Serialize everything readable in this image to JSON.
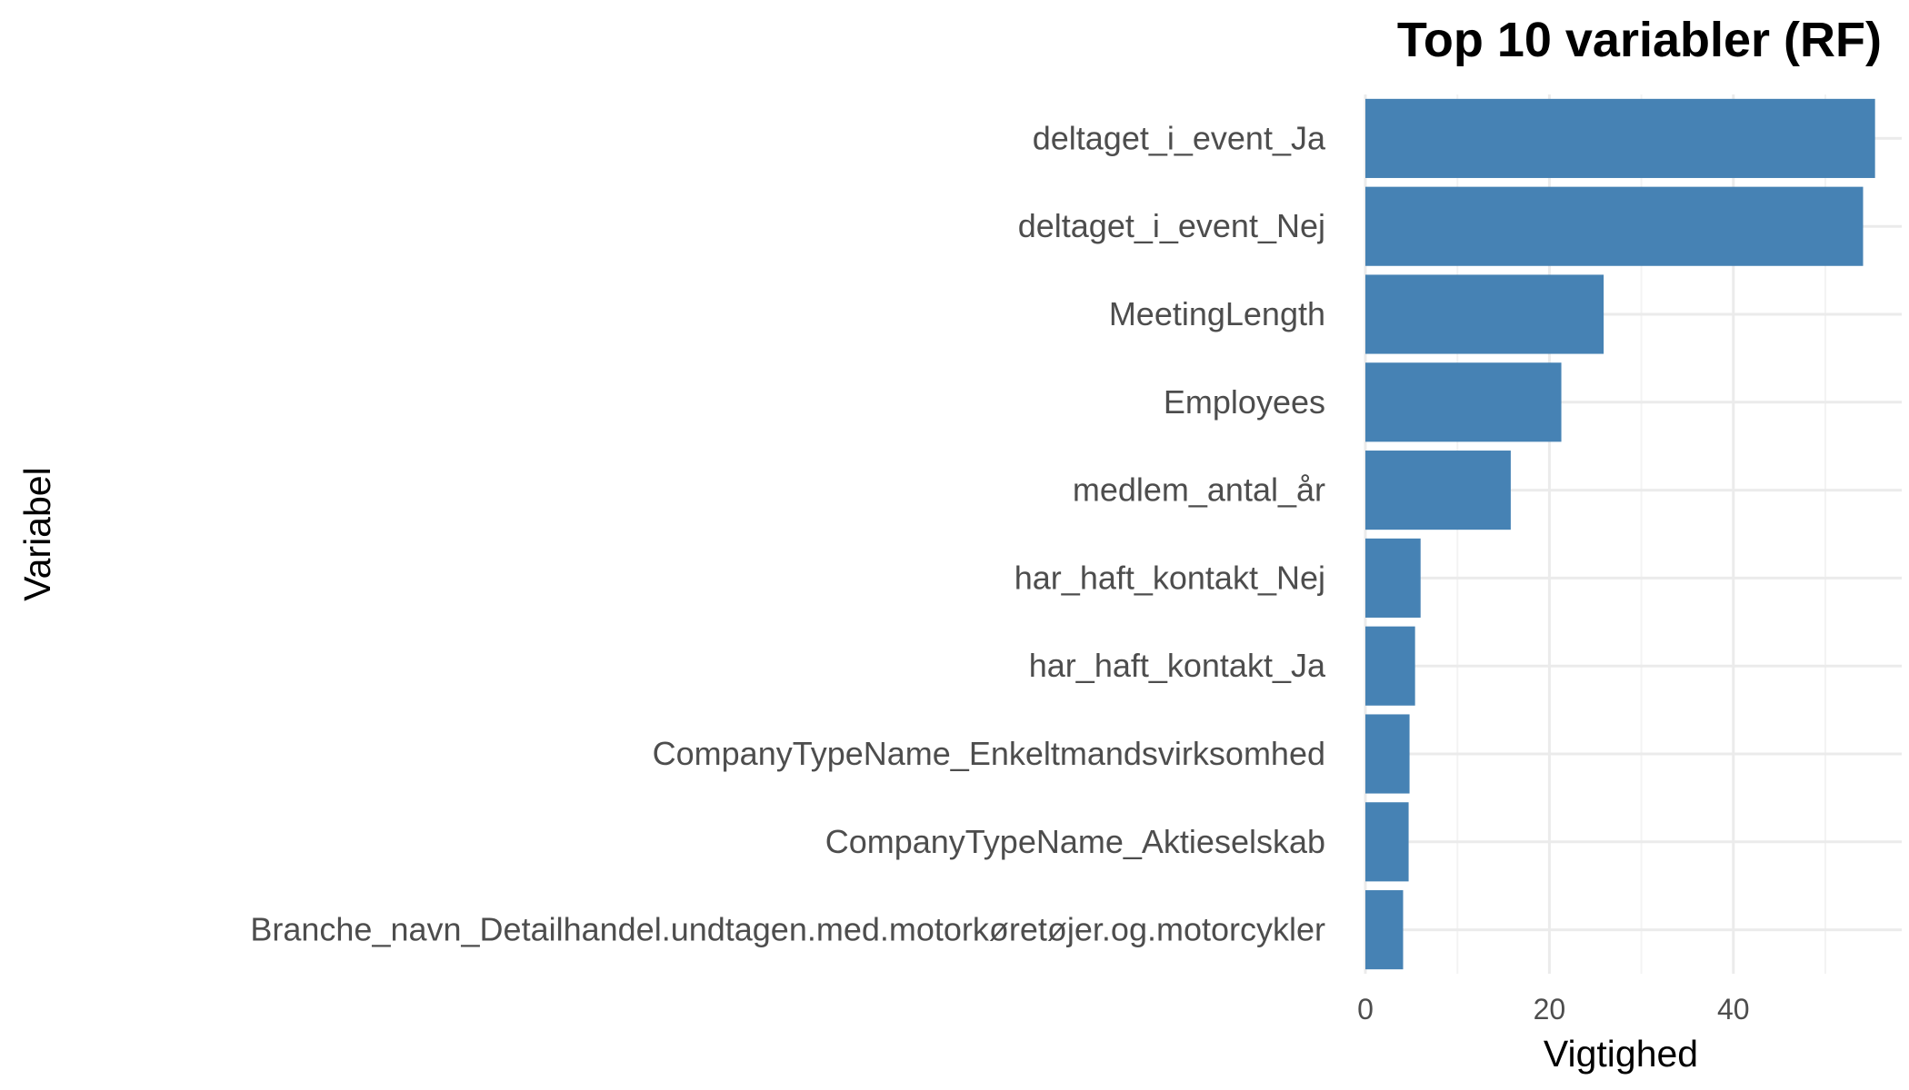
{
  "chart_data": {
    "type": "bar",
    "orientation": "horizontal",
    "title": "Top 10 variabler (RF)",
    "xlabel": "Vigtighed",
    "ylabel": "Variabel",
    "categories": [
      "deltaget_i_event_Ja",
      "deltaget_i_event_Nej",
      "MeetingLength",
      "Employees",
      "medlem_antal_år",
      "har_haft_kontakt_Nej",
      "har_haft_kontakt_Ja",
      "CompanyTypeName_Enkeltmandsvirksomhed",
      "CompanyTypeName_Aktieselskab",
      "Branche_navn_Detailhandel.undtagen.med.motorkøretøjer.og.motorcykler"
    ],
    "values": [
      55.4,
      54.1,
      25.9,
      21.3,
      15.8,
      6.0,
      5.4,
      4.8,
      4.7,
      4.1
    ],
    "xlim": [
      0,
      58
    ],
    "xticks": [
      0,
      20,
      40
    ],
    "grid": true,
    "bar_color": "#4682b4",
    "grid_color": "#ebebeb"
  }
}
